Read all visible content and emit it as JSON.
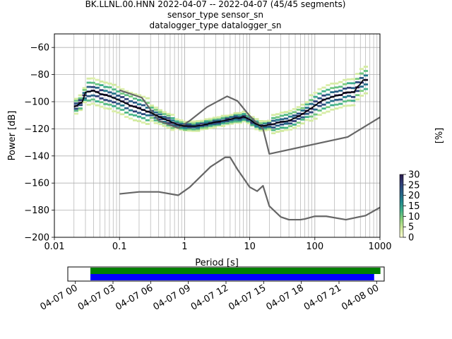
{
  "figure": {
    "title_line1": "BK.LLNL.00.HNN   2022-04-07 -- 2022-04-07  (45/45 segments)",
    "title_line2": "sensor_type  sensor_sn",
    "title_line3": "datalogger_type  datalogger_sn"
  },
  "chart_data": [
    {
      "type": "heatmap",
      "title": "BK.LLNL.00.HNN   2022-04-07 -- 2022-04-07  (45/45 segments)",
      "xlabel": "Period [s]",
      "ylabel": "Power [dB]",
      "xscale": "log",
      "xlim": [
        0.01,
        1000
      ],
      "ylim": [
        -200,
        -50
      ],
      "grid": true,
      "x_ticks": [
        "0.01",
        "0.1",
        "1",
        "10",
        "100",
        "1000"
      ],
      "y_ticks": [
        "-200",
        "-180",
        "-160",
        "-140",
        "-120",
        "-100",
        "-80",
        "-60"
      ],
      "colorbar": {
        "label": "[%]",
        "range": [
          0,
          30
        ],
        "ticks": [
          "0",
          "5",
          "10",
          "15",
          "20",
          "25",
          "30"
        ],
        "colors": [
          "#fbfdd2",
          "#d2ea9f",
          "#8bd27a",
          "#3fb18a",
          "#22878e",
          "#285f86",
          "#303e77",
          "#2b1a4c"
        ]
      },
      "series": [
        {
          "role": "mode",
          "color": "#000000",
          "x": [
            0.02,
            0.022,
            0.025,
            0.027,
            0.03,
            0.04,
            0.05,
            0.07,
            0.1,
            0.15,
            0.2,
            0.3,
            0.4,
            0.5,
            0.7,
            0.8,
            1,
            1.5,
            2,
            3,
            4,
            5,
            6,
            7,
            8,
            10,
            12,
            15,
            20,
            25,
            30,
            40,
            50,
            60,
            70,
            80,
            100,
            120,
            150,
            200,
            250,
            300,
            350,
            400,
            450,
            500,
            550,
            600,
            650
          ],
          "y": [
            -104,
            -103,
            -101,
            -100,
            -93,
            -92,
            -94,
            -96,
            -99,
            -103,
            -105,
            -108,
            -111,
            -113,
            -116,
            -117,
            -118,
            -118,
            -117,
            -115,
            -114,
            -113,
            -112,
            -112,
            -111,
            -113,
            -116,
            -118,
            -117,
            -116,
            -115,
            -114,
            -112,
            -110,
            -108,
            -106,
            -103,
            -100,
            -98,
            -96,
            -95,
            -93,
            -93,
            -93,
            -89,
            -87,
            -84,
            -84,
            -84
          ]
        },
        {
          "role": "reference",
          "color": "#666666",
          "x": [
            0.1,
            0.22,
            0.4,
            0.8,
            1.2,
            2.2,
            4.5,
            6.5,
            10,
            16,
            20,
            320,
            1000
          ],
          "y": [
            -91.5,
            -97,
            -114,
            -119.5,
            -114,
            -104,
            -96,
            -99.5,
            -110.5,
            -120,
            -138.5,
            -126,
            -111.5
          ]
        },
        {
          "role": "reference",
          "color": "#666666",
          "x": [
            0.1,
            0.2,
            0.4,
            0.8,
            1.2,
            2.5,
            4.2,
            5,
            6.5,
            10,
            13,
            16,
            20,
            30,
            40,
            60,
            70,
            100,
            150,
            300,
            600,
            1000
          ],
          "y": [
            -168,
            -166.5,
            -166.5,
            -169,
            -163,
            -148,
            -141,
            -141,
            -150,
            -163,
            -166,
            -162,
            -177,
            -185,
            -187,
            -187,
            -186.5,
            -184.5,
            -184.5,
            -187,
            -184,
            -178
          ]
        }
      ]
    },
    {
      "type": "bar",
      "description_type": "data_availability_timeline",
      "x_ticks": [
        "04-07 00",
        "04-07 03",
        "04-07 06",
        "04-07 09",
        "04-07 12",
        "04-07 15",
        "04-07 18",
        "04-07 21",
        "04-08 00"
      ],
      "series": [
        {
          "color": "#008000",
          "start_hour": 1.2,
          "end_hour": 24.3
        },
        {
          "color": "#0000ff",
          "start_hour": 1.2,
          "end_hour": 23.8
        }
      ]
    }
  ]
}
